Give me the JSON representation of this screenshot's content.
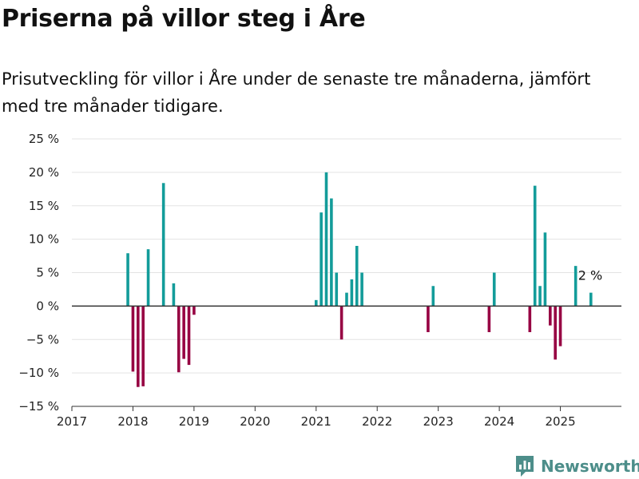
{
  "header": {
    "title": "Priserna på villor steg i Åre",
    "subtitle": "Prisutveckling för villor i Åre under de senaste tre månaderna, jämfört med tre månader tidigare."
  },
  "brand": {
    "name": "Newsworthy",
    "icon": "newsworthy-logo-icon",
    "color": "#4d8e8a"
  },
  "colors": {
    "positive": "#139c9a",
    "negative": "#970243",
    "zero_line": "#333333",
    "grid": "#e3e3e3"
  },
  "chart_data": {
    "type": "bar",
    "title": "Priserna på villor steg i Åre",
    "xlabel": "",
    "ylabel": "",
    "x_ticks": [
      "2017",
      "2018",
      "2019",
      "2020",
      "2021",
      "2022",
      "2023",
      "2024",
      "2025"
    ],
    "y_ticks": [
      "25 %",
      "20 %",
      "15 %",
      "10 %",
      "5 %",
      "0 %",
      "−5 %",
      "−10 %",
      "−15 %"
    ],
    "y_tick_values": [
      25,
      20,
      15,
      10,
      5,
      0,
      -5,
      -10,
      -15
    ],
    "ylim": [
      -15,
      25
    ],
    "xlim": [
      "2017-01",
      "2026-01"
    ],
    "grid": true,
    "annotation": {
      "text": "2 %",
      "x": "2025-07"
    },
    "series": [
      {
        "values": [
          {
            "x": "2017-12",
            "y": 7.9
          },
          {
            "x": "2018-01",
            "y": -9.8
          },
          {
            "x": "2018-02",
            "y": -12.1
          },
          {
            "x": "2018-03",
            "y": -12.0
          },
          {
            "x": "2018-04",
            "y": 8.5
          },
          {
            "x": "2018-07",
            "y": 18.4
          },
          {
            "x": "2018-09",
            "y": 3.4
          },
          {
            "x": "2018-10",
            "y": -9.9
          },
          {
            "x": "2018-11",
            "y": -7.9
          },
          {
            "x": "2018-12",
            "y": -8.8
          },
          {
            "x": "2019-01",
            "y": -1.3
          },
          {
            "x": "2021-01",
            "y": 0.9
          },
          {
            "x": "2021-02",
            "y": 14.0
          },
          {
            "x": "2021-03",
            "y": 20.0
          },
          {
            "x": "2021-04",
            "y": 16.1
          },
          {
            "x": "2021-05",
            "y": 5.0
          },
          {
            "x": "2021-06",
            "y": -5.0
          },
          {
            "x": "2021-07",
            "y": 2.0
          },
          {
            "x": "2021-08",
            "y": 4.0
          },
          {
            "x": "2021-09",
            "y": 9.0
          },
          {
            "x": "2021-10",
            "y": 5.0
          },
          {
            "x": "2022-11",
            "y": -3.9
          },
          {
            "x": "2022-12",
            "y": 3.0
          },
          {
            "x": "2023-11",
            "y": -3.9
          },
          {
            "x": "2023-12",
            "y": 5.0
          },
          {
            "x": "2024-07",
            "y": -3.9
          },
          {
            "x": "2024-08",
            "y": 18.0
          },
          {
            "x": "2024-09",
            "y": 3.0
          },
          {
            "x": "2024-10",
            "y": 11.0
          },
          {
            "x": "2024-11",
            "y": -2.9
          },
          {
            "x": "2024-12",
            "y": -8.0
          },
          {
            "x": "2025-01",
            "y": -6.0
          },
          {
            "x": "2025-04",
            "y": 6.0
          },
          {
            "x": "2025-07",
            "y": 2.0
          }
        ]
      }
    ]
  }
}
